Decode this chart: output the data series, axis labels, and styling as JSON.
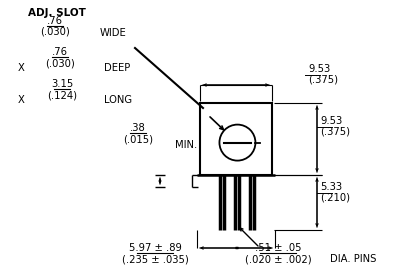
{
  "bg_color": "#ffffff",
  "line_color": "#000000",
  "gray_color": "#888888",
  "title_text": "ADJ. SLOT",
  "labels": {
    "wide_num": ".76",
    "wide_den": "(.030)",
    "wide_label": "WIDE",
    "deep_x": "X",
    "deep_num": ".76",
    "deep_den": "(.030)",
    "deep_label": "DEEP",
    "long_x": "X",
    "long_num": "3.15",
    "long_den": "(.124)",
    "long_label": "LONG",
    "min_num": ".38",
    "min_den": "(.015)",
    "min_label": "MIN.",
    "dim1_num": "9.53",
    "dim1_den": "(.375)",
    "dim2_num": "9.53",
    "dim2_den": "(.375)",
    "dim3_num": "5.33",
    "dim3_den": "(.210)",
    "dim4_num": "5.97 ± .89",
    "dim4_den": "(.235 ± .035)",
    "dim5_num": ".51 ± .05",
    "dim5_den": "(.020 ± .002)",
    "dia_pins": "DIA. PINS"
  }
}
